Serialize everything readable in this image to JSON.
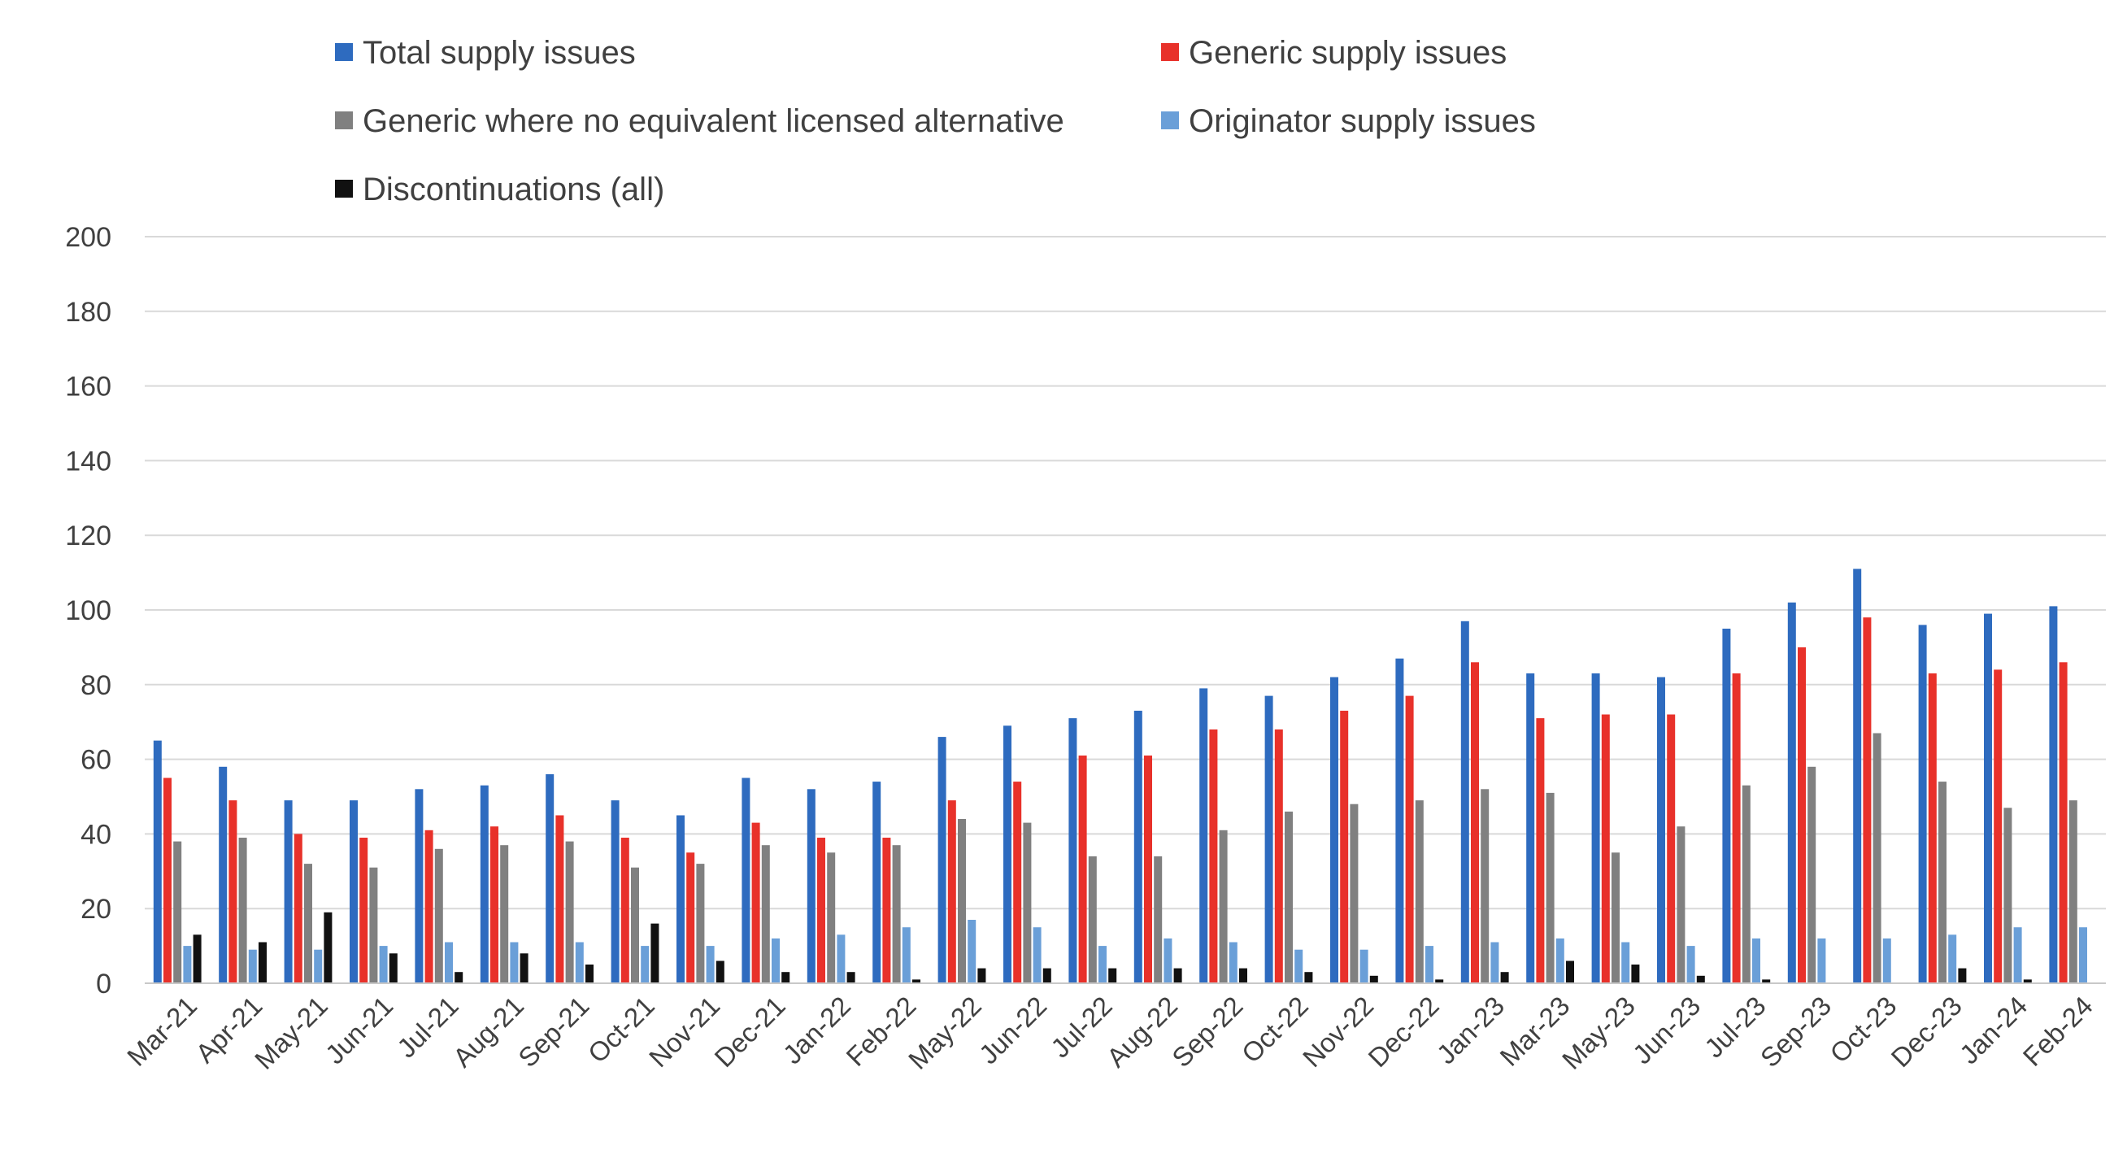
{
  "chart_data": {
    "type": "bar",
    "categories": [
      "Mar-21",
      "Apr-21",
      "May-21",
      "Jun-21",
      "Jul-21",
      "Aug-21",
      "Sep-21",
      "Oct-21",
      "Nov-21",
      "Dec-21",
      "Jan-22",
      "Feb-22",
      "May-22",
      "Jun-22",
      "Jul-22",
      "Aug-22",
      "Sep-22",
      "Oct-22",
      "Nov-22",
      "Dec-22",
      "Jan-23",
      "Mar-23",
      "May-23",
      "Jun-23",
      "Jul-23",
      "Sep-23",
      "Oct-23",
      "Dec-23",
      "Jan-24",
      "Feb-24"
    ],
    "series": [
      {
        "name": "Total supply issues",
        "color": "#2e6bbf",
        "values": [
          65,
          58,
          49,
          49,
          52,
          53,
          56,
          49,
          45,
          55,
          52,
          54,
          66,
          69,
          71,
          73,
          79,
          77,
          82,
          87,
          97,
          83,
          83,
          82,
          95,
          102,
          111,
          96,
          99,
          101
        ]
      },
      {
        "name": "Generic supply issues",
        "color": "#e8312a",
        "values": [
          55,
          49,
          40,
          39,
          41,
          42,
          45,
          39,
          35,
          43,
          39,
          39,
          49,
          54,
          61,
          61,
          68,
          68,
          73,
          77,
          86,
          71,
          72,
          72,
          83,
          90,
          98,
          83,
          84,
          86
        ]
      },
      {
        "name": "Generic where no equivalent licensed alternative",
        "color": "#808080",
        "values": [
          38,
          39,
          32,
          31,
          36,
          37,
          38,
          31,
          32,
          37,
          35,
          37,
          44,
          43,
          34,
          34,
          41,
          46,
          48,
          49,
          52,
          51,
          35,
          42,
          53,
          58,
          67,
          54,
          47,
          49
        ]
      },
      {
        "name": "Originator supply issues",
        "color": "#6a9fd8",
        "values": [
          10,
          9,
          9,
          10,
          11,
          11,
          11,
          10,
          10,
          12,
          13,
          15,
          17,
          15,
          10,
          12,
          11,
          9,
          9,
          10,
          11,
          12,
          11,
          10,
          12,
          12,
          12,
          13,
          15,
          15
        ]
      },
      {
        "name": "Discontinuations (all)",
        "color": "#111111",
        "values": [
          13,
          11,
          19,
          8,
          3,
          8,
          5,
          16,
          6,
          3,
          3,
          1,
          4,
          4,
          4,
          4,
          4,
          3,
          2,
          1,
          3,
          6,
          5,
          2,
          1,
          0,
          0,
          4,
          1,
          0
        ]
      }
    ],
    "yticks": [
      "0",
      "20",
      "40",
      "60",
      "80",
      "100",
      "120",
      "140",
      "160",
      "180",
      "200"
    ],
    "ylim": [
      0,
      200
    ],
    "grid": true,
    "legend_position": "top",
    "title": "",
    "xlabel": "",
    "ylabel": ""
  }
}
